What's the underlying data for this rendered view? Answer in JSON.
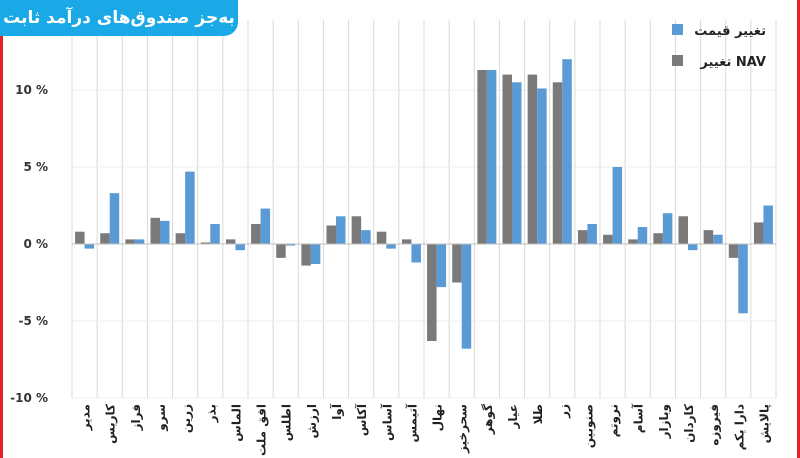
{
  "header": {
    "title": "به‌جز صندوق‌های درآمد ثابت"
  },
  "colors": {
    "nav": "#7a7a7a",
    "price": "#5b9bd5",
    "accent": "#1aa9e6",
    "border": "#e4222b"
  },
  "chart_data": {
    "type": "bar",
    "title": "به‌جز صندوق‌های درآمد ثابت",
    "xlabel": "",
    "ylabel": "",
    "ylim": [
      -10,
      15
    ],
    "yticks": [
      10,
      5,
      0,
      -5,
      -10
    ],
    "ytick_labels": [
      "10 %",
      "5 %",
      "0 %",
      "-5 %",
      "-10 %"
    ],
    "grid": true,
    "legend_position": "top-right",
    "categories": [
      "مدیر",
      "کاریس",
      "فراز",
      "سرو",
      "زرین",
      "بذر",
      "الماس",
      "افق ملت",
      "اطلس",
      "ارزش",
      "آوا",
      "آکاس",
      "آساس",
      "آتیمس",
      "نهال",
      "سحرخیز",
      "گوهر",
      "عیار",
      "طلا",
      "زر",
      "صنوبین",
      "نروتم",
      "آسام",
      "وبازار",
      "کاردان",
      "فیروزه",
      "دارا یکم",
      "پالایش"
    ],
    "series": [
      {
        "name": "تغییر NAV",
        "color": "#7a7a7a",
        "values": [
          0.8,
          0.7,
          0.3,
          1.7,
          0.7,
          0.1,
          0.3,
          1.3,
          -0.9,
          -1.4,
          1.2,
          1.8,
          0.8,
          0.3,
          -6.3,
          -2.5,
          11.3,
          11.0,
          11.0,
          10.5,
          0.9,
          0.6,
          0.3,
          0.7,
          1.8,
          0.9,
          -0.9,
          1.4
        ]
      },
      {
        "name": "تغییر قیمت",
        "color": "#5b9bd5",
        "values": [
          -0.3,
          3.3,
          0.3,
          1.5,
          4.7,
          1.3,
          -0.4,
          2.3,
          -0.1,
          -1.3,
          1.8,
          0.9,
          -0.3,
          -1.2,
          -2.8,
          -6.8,
          11.3,
          10.5,
          10.1,
          12.0,
          1.3,
          5.0,
          1.1,
          2.0,
          -0.4,
          0.6,
          -4.5,
          2.5
        ]
      }
    ]
  }
}
